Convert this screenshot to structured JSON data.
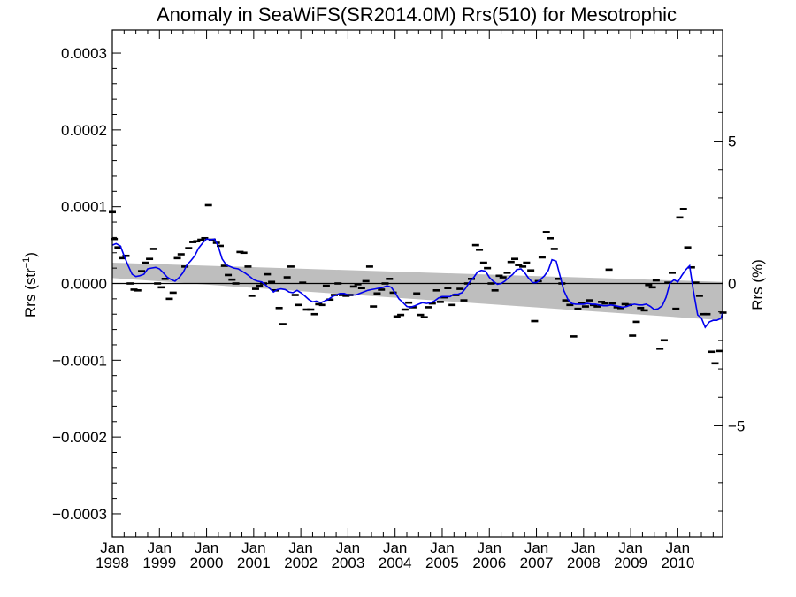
{
  "chart_data": {
    "type": "scatter",
    "title": "Anomaly in SeaWiFS(SR2014.0M) Rrs(510) for Mesotrophic",
    "ylabel_left": "Rrs (str",
    "ylabel_left_sup": "−1",
    "ylabel_left_close": ")",
    "ylabel_right": "Rrs (%)",
    "xlim": [
      1998.0,
      2010.95
    ],
    "ylim": [
      -0.00033,
      0.00033
    ],
    "y2lim": [
      -8.9,
      8.9
    ],
    "x_ticks": [
      {
        "value": 1998,
        "month": "Jan",
        "year": "1998"
      },
      {
        "value": 1999,
        "month": "Jan",
        "year": "1999"
      },
      {
        "value": 2000,
        "month": "Jan",
        "year": "2000"
      },
      {
        "value": 2001,
        "month": "Jan",
        "year": "2001"
      },
      {
        "value": 2002,
        "month": "Jan",
        "year": "2002"
      },
      {
        "value": 2003,
        "month": "Jan",
        "year": "2003"
      },
      {
        "value": 2004,
        "month": "Jan",
        "year": "2004"
      },
      {
        "value": 2005,
        "month": "Jan",
        "year": "2005"
      },
      {
        "value": 2006,
        "month": "Jan",
        "year": "2006"
      },
      {
        "value": 2007,
        "month": "Jan",
        "year": "2007"
      },
      {
        "value": 2008,
        "month": "Jan",
        "year": "2008"
      },
      {
        "value": 2009,
        "month": "Jan",
        "year": "2009"
      },
      {
        "value": 2010,
        "month": "Jan",
        "year": "2010"
      }
    ],
    "y_ticks": [
      {
        "value": 0.0003,
        "label": "0.0003"
      },
      {
        "value": 0.0002,
        "label": "0.0002"
      },
      {
        "value": 0.0001,
        "label": "0.0001"
      },
      {
        "value": 0.0,
        "label": "0.0000"
      },
      {
        "value": -0.0001,
        "label": "−0.0001"
      },
      {
        "value": -0.0002,
        "label": "−0.0002"
      },
      {
        "value": -0.0003,
        "label": "−0.0003"
      }
    ],
    "y2_ticks": [
      {
        "value": 5,
        "label": "5"
      },
      {
        "value": 0,
        "label": "0"
      },
      {
        "value": -5,
        "label": "−5"
      }
    ],
    "colors": {
      "points": "#000000",
      "smooth": "#0000ee",
      "band": "#bebebe",
      "zero_line": "#000000"
    },
    "band": {
      "upper": [
        [
          1998.0,
          2.7e-05
        ],
        [
          2010.95,
          2e-06
        ]
      ],
      "lower": [
        [
          1998.0,
          7e-06
        ],
        [
          2010.95,
          -4.8e-05
        ]
      ]
    },
    "points": [
      [
        1998.0,
        9.3e-05
      ],
      [
        1998.04,
        5.8e-05
      ],
      [
        1998.12,
        4.7e-05
      ],
      [
        1998.21,
        3.3e-05
      ],
      [
        1998.29,
        3.6e-05
      ],
      [
        1998.38,
        0.0
      ],
      [
        1998.46,
        -8e-06
      ],
      [
        1998.54,
        -9e-06
      ],
      [
        1998.62,
        1.6e-05
      ],
      [
        1998.71,
        2.7e-05
      ],
      [
        1998.79,
        3.2e-05
      ],
      [
        1998.88,
        4.5e-05
      ],
      [
        1998.96,
        0.0
      ],
      [
        1999.04,
        -5e-06
      ],
      [
        1999.12,
        6e-06
      ],
      [
        1999.21,
        -2e-05
      ],
      [
        1999.29,
        -1.2e-05
      ],
      [
        1999.38,
        3.3e-05
      ],
      [
        1999.46,
        3.8e-05
      ],
      [
        1999.54,
        2.2e-05
      ],
      [
        1999.62,
        4.6e-05
      ],
      [
        1999.71,
        5.4e-05
      ],
      [
        1999.79,
        5.5e-05
      ],
      [
        1999.88,
        5.7e-05
      ],
      [
        1999.96,
        5.9e-05
      ],
      [
        2000.04,
        0.000102
      ],
      [
        2000.12,
        5.7e-05
      ],
      [
        2000.21,
        5.3e-05
      ],
      [
        2000.29,
        4.9e-05
      ],
      [
        2000.38,
        2.3e-05
      ],
      [
        2000.46,
        1.1e-05
      ],
      [
        2000.54,
        5e-06
      ],
      [
        2000.62,
        0.0
      ],
      [
        2000.71,
        4.1e-05
      ],
      [
        2000.79,
        4e-05
      ],
      [
        2000.88,
        2.2e-05
      ],
      [
        2000.96,
        -1.6e-05
      ],
      [
        2001.04,
        -7e-06
      ],
      [
        2001.12,
        -3e-06
      ],
      [
        2001.21,
        0.0
      ],
      [
        2001.29,
        1.2e-05
      ],
      [
        2001.38,
        2e-06
      ],
      [
        2001.46,
        -9e-06
      ],
      [
        2001.54,
        -3.2e-05
      ],
      [
        2001.62,
        -5.3e-05
      ],
      [
        2001.71,
        8e-06
      ],
      [
        2001.79,
        2.2e-05
      ],
      [
        2001.88,
        -1.5e-05
      ],
      [
        2001.96,
        -2.8e-05
      ],
      [
        2002.04,
        1e-06
      ],
      [
        2002.12,
        -3.4e-05
      ],
      [
        2002.21,
        -3.4e-05
      ],
      [
        2002.29,
        -4e-05
      ],
      [
        2002.38,
        -2.7e-05
      ],
      [
        2002.46,
        -2.8e-05
      ],
      [
        2002.54,
        -3e-06
      ],
      [
        2002.62,
        -2.1e-05
      ],
      [
        2002.71,
        -1.5e-05
      ],
      [
        2002.79,
        0.0
      ],
      [
        2002.88,
        -1.5e-05
      ],
      [
        2002.96,
        -1.6e-05
      ],
      [
        2003.04,
        -1.5e-05
      ],
      [
        2003.12,
        -4e-06
      ],
      [
        2003.21,
        -1e-06
      ],
      [
        2003.29,
        -6e-06
      ],
      [
        2003.38,
        3e-06
      ],
      [
        2003.46,
        2.2e-05
      ],
      [
        2003.54,
        -3e-05
      ],
      [
        2003.62,
        -1.3e-05
      ],
      [
        2003.71,
        -8e-06
      ],
      [
        2003.79,
        0.0
      ],
      [
        2003.88,
        6e-06
      ],
      [
        2003.96,
        -1.2e-05
      ],
      [
        2004.04,
        -4.3e-05
      ],
      [
        2004.12,
        -4.1e-05
      ],
      [
        2004.21,
        -3.4e-05
      ],
      [
        2004.29,
        -2.5e-05
      ],
      [
        2004.38,
        -3.1e-05
      ],
      [
        2004.46,
        -1.3e-05
      ],
      [
        2004.54,
        -4.1e-05
      ],
      [
        2004.62,
        -4.4e-05
      ],
      [
        2004.71,
        -3.1e-05
      ],
      [
        2004.79,
        -2.6e-05
      ],
      [
        2004.88,
        -9e-06
      ],
      [
        2004.96,
        -2.4e-05
      ],
      [
        2005.04,
        -1.8e-05
      ],
      [
        2005.12,
        -6e-06
      ],
      [
        2005.21,
        -2.8e-05
      ],
      [
        2005.29,
        -1.5e-05
      ],
      [
        2005.38,
        -7e-06
      ],
      [
        2005.46,
        -2.2e-05
      ],
      [
        2005.54,
        0.0
      ],
      [
        2005.62,
        6e-06
      ],
      [
        2005.71,
        5e-05
      ],
      [
        2005.79,
        4.4e-05
      ],
      [
        2005.88,
        2.7e-05
      ],
      [
        2005.96,
        2e-05
      ],
      [
        2006.04,
        0.0
      ],
      [
        2006.12,
        -9e-06
      ],
      [
        2006.21,
        1e-05
      ],
      [
        2006.29,
        8e-06
      ],
      [
        2006.38,
        1.4e-05
      ],
      [
        2006.46,
        2.8e-05
      ],
      [
        2006.54,
        3.2e-05
      ],
      [
        2006.62,
        2.4e-05
      ],
      [
        2006.71,
        2.2e-05
      ],
      [
        2006.79,
        2.7e-05
      ],
      [
        2006.88,
        1.7e-05
      ],
      [
        2006.96,
        -4.9e-05
      ],
      [
        2007.04,
        3e-06
      ],
      [
        2007.12,
        3.4e-05
      ],
      [
        2007.21,
        6.7e-05
      ],
      [
        2007.29,
        5.9e-05
      ],
      [
        2007.38,
        4.5e-05
      ],
      [
        2007.46,
        6e-06
      ],
      [
        2007.54,
        0.0
      ],
      [
        2007.62,
        -2.2e-05
      ],
      [
        2007.71,
        -2.8e-05
      ],
      [
        2007.79,
        -6.9e-05
      ],
      [
        2007.88,
        -3.3e-05
      ],
      [
        2007.96,
        -2.6e-05
      ],
      [
        2008.04,
        -3e-05
      ],
      [
        2008.12,
        -2.2e-05
      ],
      [
        2008.21,
        -2.8e-05
      ],
      [
        2008.29,
        -3e-05
      ],
      [
        2008.38,
        -2.4e-05
      ],
      [
        2008.46,
        -2.6e-05
      ],
      [
        2008.54,
        1.8e-05
      ],
      [
        2008.62,
        -2.6e-05
      ],
      [
        2008.71,
        -3.1e-05
      ],
      [
        2008.79,
        -3.2e-05
      ],
      [
        2008.88,
        -2.7e-05
      ],
      [
        2008.96,
        -2.8e-05
      ],
      [
        2009.04,
        -6.8e-05
      ],
      [
        2009.12,
        -5e-05
      ],
      [
        2009.21,
        -3.2e-05
      ],
      [
        2009.29,
        -3.5e-05
      ],
      [
        2009.38,
        -2e-06
      ],
      [
        2009.46,
        -5e-06
      ],
      [
        2009.54,
        4e-06
      ],
      [
        2009.62,
        -8.5e-05
      ],
      [
        2009.71,
        -7.4e-05
      ],
      [
        2009.79,
        1e-06
      ],
      [
        2009.88,
        1.4e-05
      ],
      [
        2009.96,
        -3.3e-05
      ],
      [
        2010.04,
        8.6e-05
      ],
      [
        2010.12,
        9.7e-05
      ],
      [
        2010.21,
        4.7e-05
      ],
      [
        2010.29,
        2.1e-05
      ],
      [
        2010.38,
        1e-06
      ],
      [
        2010.46,
        -1.6e-05
      ],
      [
        2010.54,
        -4e-05
      ],
      [
        2010.62,
        -4e-05
      ],
      [
        2010.71,
        -8.9e-05
      ],
      [
        2010.79,
        -0.000104
      ],
      [
        2010.88,
        -8.8e-05
      ],
      [
        2010.96,
        -3.8e-05
      ]
    ],
    "smooth": [
      [
        1998.0,
        5e-05
      ],
      [
        1998.08,
        5.2e-05
      ],
      [
        1998.17,
        4.9e-05
      ],
      [
        1998.25,
        3.6e-05
      ],
      [
        1998.33,
        2.4e-05
      ],
      [
        1998.42,
        1.2e-05
      ],
      [
        1998.5,
        9e-06
      ],
      [
        1998.58,
        1e-05
      ],
      [
        1998.67,
        1.2e-05
      ],
      [
        1998.75,
        1.9e-05
      ],
      [
        1998.83,
        2e-05
      ],
      [
        1998.92,
        2.1e-05
      ],
      [
        1999.0,
        1.9e-05
      ],
      [
        1999.08,
        1.4e-05
      ],
      [
        1999.17,
        8e-06
      ],
      [
        1999.25,
        5e-06
      ],
      [
        1999.33,
        3e-06
      ],
      [
        1999.42,
        8e-06
      ],
      [
        1999.5,
        1.4e-05
      ],
      [
        1999.58,
        2.4e-05
      ],
      [
        1999.67,
        3e-05
      ],
      [
        1999.75,
        3.6e-05
      ],
      [
        1999.83,
        4.6e-05
      ],
      [
        1999.92,
        5.3e-05
      ],
      [
        2000.0,
        5.8e-05
      ],
      [
        2000.08,
        5.7e-05
      ],
      [
        2000.17,
        5.8e-05
      ],
      [
        2000.25,
        4.8e-05
      ],
      [
        2000.33,
        3.2e-05
      ],
      [
        2000.42,
        2.4e-05
      ],
      [
        2000.5,
        2.2e-05
      ],
      [
        2000.58,
        2e-05
      ],
      [
        2000.67,
        1.9e-05
      ],
      [
        2000.75,
        1.6e-05
      ],
      [
        2000.83,
        1.3e-05
      ],
      [
        2000.92,
        9e-06
      ],
      [
        2001.0,
        5e-06
      ],
      [
        2001.08,
        3e-06
      ],
      [
        2001.17,
        2e-06
      ],
      [
        2001.25,
        -2e-06
      ],
      [
        2001.33,
        -6e-06
      ],
      [
        2001.42,
        -1.1e-05
      ],
      [
        2001.5,
        -8e-06
      ],
      [
        2001.58,
        -7e-06
      ],
      [
        2001.67,
        -8e-06
      ],
      [
        2001.75,
        -1.1e-05
      ],
      [
        2001.83,
        -1.2e-05
      ],
      [
        2001.92,
        -9e-06
      ],
      [
        2002.0,
        -1.2e-05
      ],
      [
        2002.08,
        -1.6e-05
      ],
      [
        2002.17,
        -2.1e-05
      ],
      [
        2002.25,
        -2.4e-05
      ],
      [
        2002.33,
        -2.3e-05
      ],
      [
        2002.42,
        -2.5e-05
      ],
      [
        2002.5,
        -2.3e-05
      ],
      [
        2002.58,
        -2.1e-05
      ],
      [
        2002.67,
        -1.7e-05
      ],
      [
        2002.75,
        -1.5e-05
      ],
      [
        2002.83,
        -1.3e-05
      ],
      [
        2002.92,
        -1.3e-05
      ],
      [
        2003.0,
        -1.5e-05
      ],
      [
        2003.08,
        -1.5e-05
      ],
      [
        2003.17,
        -1.5e-05
      ],
      [
        2003.25,
        -1.3e-05
      ],
      [
        2003.33,
        -1.1e-05
      ],
      [
        2003.42,
        -9e-06
      ],
      [
        2003.5,
        -8e-06
      ],
      [
        2003.58,
        -7e-06
      ],
      [
        2003.67,
        -6e-06
      ],
      [
        2003.75,
        -5e-06
      ],
      [
        2003.83,
        -3e-06
      ],
      [
        2003.92,
        -5e-06
      ],
      [
        2004.0,
        -1.2e-05
      ],
      [
        2004.08,
        -2e-05
      ],
      [
        2004.17,
        -2.5e-05
      ],
      [
        2004.25,
        -3e-05
      ],
      [
        2004.33,
        -3.1e-05
      ],
      [
        2004.42,
        -2.9e-05
      ],
      [
        2004.5,
        -2.7e-05
      ],
      [
        2004.58,
        -2.5e-05
      ],
      [
        2004.67,
        -2.6e-05
      ],
      [
        2004.75,
        -2.5e-05
      ],
      [
        2004.83,
        -2.3e-05
      ],
      [
        2004.92,
        -1.9e-05
      ],
      [
        2005.0,
        -1.7e-05
      ],
      [
        2005.08,
        -1.7e-05
      ],
      [
        2005.17,
        -1.7e-05
      ],
      [
        2005.25,
        -1.4e-05
      ],
      [
        2005.33,
        -1.4e-05
      ],
      [
        2005.42,
        -1.2e-05
      ],
      [
        2005.5,
        -6e-06
      ],
      [
        2005.58,
        2e-06
      ],
      [
        2005.67,
        8e-06
      ],
      [
        2005.75,
        1.5e-05
      ],
      [
        2005.83,
        1.7e-05
      ],
      [
        2005.92,
        1.6e-05
      ],
      [
        2006.0,
        8e-06
      ],
      [
        2006.08,
        3e-06
      ],
      [
        2006.17,
        -1e-06
      ],
      [
        2006.25,
        0.0
      ],
      [
        2006.33,
        3e-06
      ],
      [
        2006.42,
        8e-06
      ],
      [
        2006.5,
        1.2e-05
      ],
      [
        2006.58,
        1.8e-05
      ],
      [
        2006.67,
        1.9e-05
      ],
      [
        2006.75,
        1.4e-05
      ],
      [
        2006.83,
        7e-06
      ],
      [
        2006.92,
        1e-06
      ],
      [
        2007.0,
        1e-06
      ],
      [
        2007.08,
        5e-06
      ],
      [
        2007.17,
        1e-05
      ],
      [
        2007.25,
        1.7e-05
      ],
      [
        2007.33,
        3.1e-05
      ],
      [
        2007.42,
        2.9e-05
      ],
      [
        2007.5,
        1e-05
      ],
      [
        2007.58,
        -9e-06
      ],
      [
        2007.67,
        -2.1e-05
      ],
      [
        2007.75,
        -2.6e-05
      ],
      [
        2007.83,
        -2.7e-05
      ],
      [
        2007.92,
        -2.7e-05
      ],
      [
        2008.0,
        -2.7e-05
      ],
      [
        2008.08,
        -2.6e-05
      ],
      [
        2008.17,
        -2.7e-05
      ],
      [
        2008.25,
        -2.7e-05
      ],
      [
        2008.33,
        -2.8e-05
      ],
      [
        2008.42,
        -2.9e-05
      ],
      [
        2008.5,
        -2.9e-05
      ],
      [
        2008.58,
        -2.8e-05
      ],
      [
        2008.67,
        -2.9e-05
      ],
      [
        2008.75,
        -3e-05
      ],
      [
        2008.83,
        -3.1e-05
      ],
      [
        2008.92,
        -3e-05
      ],
      [
        2009.0,
        -2.8e-05
      ],
      [
        2009.08,
        -2.7e-05
      ],
      [
        2009.17,
        -2.8e-05
      ],
      [
        2009.25,
        -2.8e-05
      ],
      [
        2009.33,
        -2.7e-05
      ],
      [
        2009.42,
        -3e-05
      ],
      [
        2009.5,
        -3.4e-05
      ],
      [
        2009.58,
        -3.3e-05
      ],
      [
        2009.67,
        -2.9e-05
      ],
      [
        2009.75,
        -1.8e-05
      ],
      [
        2009.83,
        0.0
      ],
      [
        2009.92,
        5e-06
      ],
      [
        2010.0,
        2e-06
      ],
      [
        2010.08,
        1e-05
      ],
      [
        2010.17,
        1.8e-05
      ],
      [
        2010.25,
        2.3e-05
      ],
      [
        2010.33,
        -1e-05
      ],
      [
        2010.42,
        -4.1e-05
      ],
      [
        2010.5,
        -4.5e-05
      ],
      [
        2010.58,
        -5.7e-05
      ],
      [
        2010.67,
        -5e-05
      ],
      [
        2010.75,
        -4.8e-05
      ],
      [
        2010.83,
        -4.8e-05
      ],
      [
        2010.92,
        -4.5e-05
      ],
      [
        2010.95,
        -3.8e-05
      ]
    ]
  }
}
